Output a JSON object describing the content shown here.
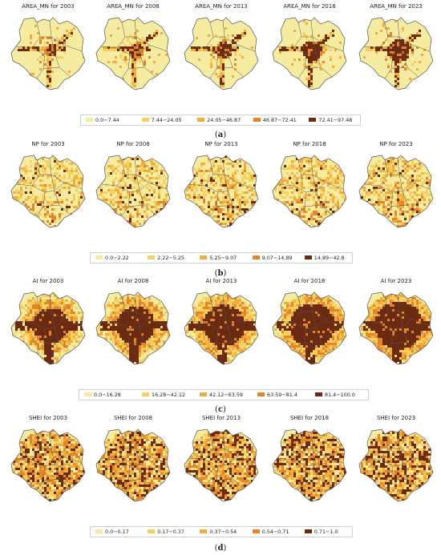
{
  "years": [
    "2003",
    "2008",
    "2013",
    "2018",
    "2023"
  ],
  "panels": [
    {
      "metric": "AREA_MN",
      "titles": [
        "AREA_MN for 2003",
        "AREA_MN for 2008",
        "AREA_MN for 2013",
        "AREA_MN for 2018",
        "AREA_MN for 2023"
      ],
      "legend": [
        {
          "label": "0.0−7.44",
          "color": "#f6eca1"
        },
        {
          "label": "7.44−24.05",
          "color": "#f5d060"
        },
        {
          "label": "24.05−46.87",
          "color": "#efae3c"
        },
        {
          "label": "46.87−72.41",
          "color": "#e4852a"
        },
        {
          "label": "72.41−97.48",
          "color": "#6b2a12"
        }
      ],
      "label_prefix": "(",
      "letter": "a",
      "label_suffix": ")",
      "pattern": "sparse_center"
    },
    {
      "metric": "NP",
      "titles": [
        "NP for 2003",
        "NP for 2008",
        "NP for 2013",
        "NP for 2018",
        "NP for 2023"
      ],
      "legend": [
        {
          "label": "0.0−2.22",
          "color": "#f6eca1"
        },
        {
          "label": "2.22−5.25",
          "color": "#f5d060"
        },
        {
          "label": "5.25−9.07",
          "color": "#efae3c"
        },
        {
          "label": "9.07−14.89",
          "color": "#e4852a"
        },
        {
          "label": "14.89−42.8",
          "color": "#6b2a12"
        }
      ],
      "label_prefix": "(",
      "letter": "b",
      "label_suffix": ")",
      "pattern": "scattered_south"
    },
    {
      "metric": "AI",
      "titles": [
        "AI for 2003",
        "AI for 2008",
        "AI for 2013",
        "AI for 2018",
        "AI for 2023"
      ],
      "legend": [
        {
          "label": "0.0−16.28",
          "color": "#f6eca1"
        },
        {
          "label": "16.28−42.12",
          "color": "#f5d060"
        },
        {
          "label": "42.12−63.59",
          "color": "#efae3c"
        },
        {
          "label": "63.59−81.4",
          "color": "#e4852a"
        },
        {
          "label": "81.4−100.0",
          "color": "#6b2a12"
        }
      ],
      "label_prefix": "(",
      "letter": "c",
      "label_suffix": ")",
      "pattern": "dense_center"
    },
    {
      "metric": "SHEI",
      "titles": [
        "SHEI for 2003",
        "SHEI for 2008",
        "SHEI for 2013",
        "SHEI for 2018",
        "SHEI for 2023"
      ],
      "legend": [
        {
          "label": "0.0−0.17",
          "color": "#f6eca1"
        },
        {
          "label": "0.17−0.37",
          "color": "#f5d060"
        },
        {
          "label": "0.37−0.54",
          "color": "#efae3c"
        },
        {
          "label": "0.54−0.71",
          "color": "#e4852a"
        },
        {
          "label": "0.71−1.0",
          "color": "#6b2a12"
        }
      ],
      "label_prefix": "(",
      "letter": "d",
      "label_suffix": ")",
      "pattern": "everywhere"
    }
  ],
  "colors": {
    "background": "#f6eca1",
    "boundary": "#555555"
  }
}
